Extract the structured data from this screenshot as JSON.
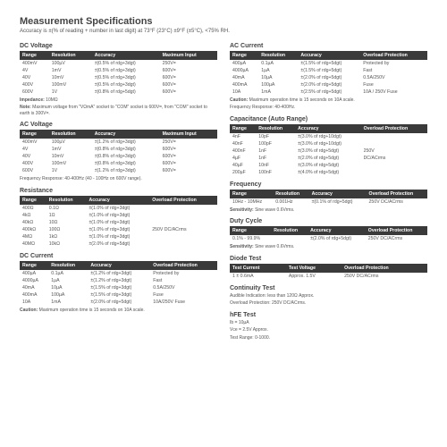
{
  "page": {
    "title": "Measurement Specifications",
    "intro": "Accuracy is ±(% of reading + number in last digit) at 73°F (23°C) ±9°F (±5°C), <75% RH."
  },
  "dc_voltage": {
    "title": "DC Voltage",
    "cols": [
      "Range",
      "Resolution",
      "Accuracy",
      "Maximum Input"
    ],
    "rows": [
      [
        "400mV",
        "100µV",
        "±(0.5% of rdg+3dgt)",
        "250V="
      ],
      [
        "4V",
        "1mV",
        "±(0.5% of rdg+3dgt)",
        "600V="
      ],
      [
        "40V",
        "10mV",
        "±(0.5% of rdg+3dgt)",
        "600V="
      ],
      [
        "400V",
        "100mV",
        "±(0.5% of rdg+3dgt)",
        "600V="
      ],
      [
        "600V",
        "1V",
        "±(0.8% of rdg+5dgt)",
        "600V="
      ]
    ],
    "notes": [
      "Impedance: 10MΩ",
      "Note: Maximum voltage from \"VΩmA\" socket to \"COM\" socket is 600V=, from \"COM\" socket to earth is 300V=."
    ]
  },
  "ac_voltage": {
    "title": "AC Voltage",
    "cols": [
      "Range",
      "Resolution",
      "Accuracy",
      "Maximum Input"
    ],
    "rows": [
      [
        "400mV",
        "100µV",
        "±(1.2% of rdg+3dgt)",
        "250V="
      ],
      [
        "4V",
        "1mV",
        "±(0.8% of rdg+3dgt)",
        "600V="
      ],
      [
        "40V",
        "10mV",
        "±(0.8% of rdg+3dgt)",
        "600V="
      ],
      [
        "400V",
        "100mV",
        "±(0.8% of rdg+3dgt)",
        "600V="
      ],
      [
        "600V",
        "1V",
        "±(1.2% of rdg+3dgt)",
        "600V="
      ]
    ],
    "notes": [
      "Frequency Response: 40-400Hz (40 - 100Hz on 600V range)."
    ]
  },
  "resistance": {
    "title": "Resistance",
    "cols": [
      "Range",
      "Resolution",
      "Accuracy",
      "Overload Protection"
    ],
    "rows": [
      [
        "400Ω",
        "0.1Ω",
        "±(1.0% of rdg+3dgt)",
        ""
      ],
      [
        "4kΩ",
        "1Ω",
        "±(1.0% of rdg+3dgt)",
        ""
      ],
      [
        "40kΩ",
        "10Ω",
        "±(1.0% of rdg+3dgt)",
        ""
      ],
      [
        "400kΩ",
        "100Ω",
        "±(1.0% of rdg+3dgt)",
        "250V DC/ACrms"
      ],
      [
        "4MΩ",
        "1kΩ",
        "±(1.0% of rdg+3dgt)",
        ""
      ],
      [
        "40MΩ",
        "10kΩ",
        "±(2.0% of rdg+5dgt)",
        ""
      ]
    ]
  },
  "dc_current": {
    "title": "DC Current",
    "cols": [
      "Range",
      "Resolution",
      "Accuracy",
      "Overload Protection"
    ],
    "rows": [
      [
        "400µA",
        "0.1µA",
        "±(1.2% of rdg+3dgt)",
        "Protected by"
      ],
      [
        "4000µA",
        "1µA",
        "±(1.2% of rdg+3dgt)",
        "Fast"
      ],
      [
        "40mA",
        "10µA",
        "±(1.5% of rdg+3dgt)",
        "0.5A/250V"
      ],
      [
        "400mA",
        "100µA",
        "±(1.5% of rdg+3dgt)",
        "Fuse"
      ],
      [
        "10A",
        "1mA",
        "±(2.0% of rdg+5dgt)",
        "10A/250V Fuse"
      ]
    ],
    "notes": [
      "Caution: Maximum operation time is 15 seconds on 10A scale."
    ]
  },
  "ac_current": {
    "title": "AC Current",
    "cols": [
      "Range",
      "Resolution",
      "Accuracy",
      "Overload Protection"
    ],
    "rows": [
      [
        "400µA",
        "0.1µA",
        "±(1.5% of rdg+5dgt)",
        "Protected by"
      ],
      [
        "4000µA",
        "1µA",
        "±(1.5% of rdg+5dgt)",
        "Fast"
      ],
      [
        "40mA",
        "10µA",
        "±(2.0% of rdg+5dgt)",
        "0.5A/250V"
      ],
      [
        "400mA",
        "100µA",
        "±(2.0% of rdg+5dgt)",
        "Fuse"
      ],
      [
        "10A",
        "1mA",
        "±(2.5% of rdg+5dgt)",
        "10A / 250V Fuse"
      ]
    ],
    "notes": [
      "Caution: Maximum operation time is 15 seconds on 10A scale.",
      "Frequency Response: 40-400Hz."
    ]
  },
  "capacitance": {
    "title": "Capacitance (Auto Range)",
    "cols": [
      "Range",
      "Resolution",
      "Accuracy",
      "Overload Protection"
    ],
    "rows": [
      [
        "4nF",
        "10pF",
        "±(3.0% of rdg+10dgt)",
        ""
      ],
      [
        "40nF",
        "100pF",
        "±(3.0% of rdg+10dgt)",
        ""
      ],
      [
        "400nF",
        "1nF",
        "±(3.0% of rdg+5dgt)",
        "250V"
      ],
      [
        "4µF",
        "1nF",
        "±(2.0% of rdg+5dgt)",
        "DC/ACrms"
      ],
      [
        "40µF",
        "10nF",
        "±(3.0% of rdg+5dgt)",
        ""
      ],
      [
        "200µF",
        "100nF",
        "±(4.0% of rdg+5dgt)",
        ""
      ]
    ]
  },
  "frequency": {
    "title": "Frequency",
    "cols": [
      "Range",
      "Resolution",
      "Accuracy",
      "Overload Protection"
    ],
    "rows": [
      [
        "10Hz - 10MHz",
        "0.001Hz",
        "±(0.1% of rdg+5dgt)",
        "250V DC/ACrms"
      ]
    ],
    "notes": [
      "Sensitivity: Sine wave 0.6Vrms."
    ]
  },
  "duty": {
    "title": "Duty Cycle",
    "cols": [
      "Range",
      "Resolution",
      "Accuracy",
      "Overload Protection"
    ],
    "rows": [
      [
        "0.1% - 99.9%",
        "",
        "±(2.0% of rdg+5dgt)",
        "250V DC/ACrms"
      ]
    ],
    "notes": [
      "Sensitivity: Sine wave 0.6Vrms."
    ]
  },
  "diode": {
    "title": "Diode Test",
    "cols": [
      "Test Current",
      "Test Voltage",
      "Overload Protection"
    ],
    "rows": [
      [
        "1 ± 0.6mA",
        "Approx. 1.5V",
        "250V DC/ACrms"
      ]
    ]
  },
  "continuity": {
    "title": "Continuity Test",
    "notes": [
      "Audible Indication: less than 120Ω Approx.",
      "Overload Protection: 250V DC/ACrms."
    ]
  },
  "hfe": {
    "title": "hFE Test",
    "notes": [
      "Ib = 10µA",
      "Vce = 2.5V Approx.",
      "Test Range: 0-1000."
    ]
  }
}
